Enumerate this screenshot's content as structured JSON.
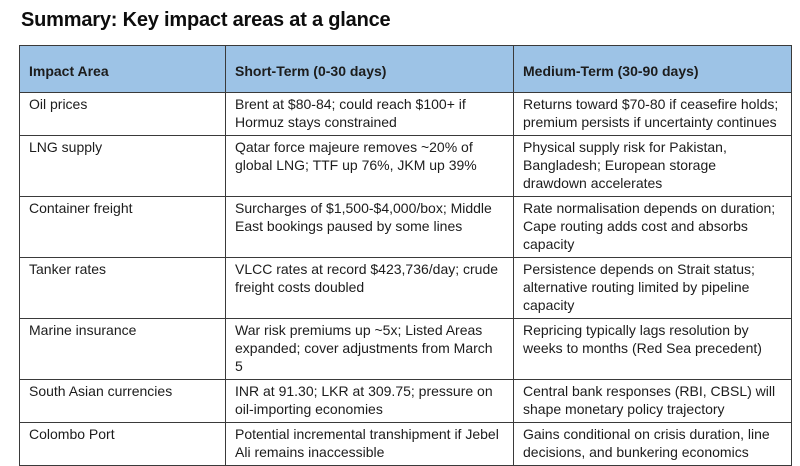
{
  "page": {
    "title": "Summary: Key impact areas at a glance"
  },
  "colors": {
    "header_bg": "#9DC3E6",
    "table_border": "#3A3A3A",
    "text": "#1C1C1C"
  },
  "table": {
    "headers": [
      "Impact Area",
      "Short-Term (0-30 days)",
      "Medium-Term (30-90 days)"
    ],
    "rows": [
      {
        "area": "Oil prices",
        "short": "Brent at $80-84; could reach $100+ if Hormuz stays constrained",
        "medium": "Returns toward $70-80 if ceasefire holds; premium persists if uncertainty continues"
      },
      {
        "area": "LNG supply",
        "short": "Qatar force majeure removes ~20% of global LNG; TTF up 76%, JKM up 39%",
        "medium": "Physical supply risk for Pakistan, Bangladesh; European storage drawdown accelerates"
      },
      {
        "area": "Container freight",
        "short": "Surcharges of $1,500-$4,000/box; Middle East bookings paused by some lines",
        "medium": "Rate normalisation depends on duration; Cape routing adds cost and absorbs capacity"
      },
      {
        "area": "Tanker rates",
        "short": "VLCC rates at record $423,736/day; crude freight costs doubled",
        "medium": "Persistence depends on Strait status; alternative routing limited by pipeline capacity"
      },
      {
        "area": "Marine insurance",
        "short": "War risk premiums up ~5x; Listed Areas expanded; cover adjustments from March 5",
        "medium": "Repricing typically lags resolution by weeks to months (Red Sea precedent)"
      },
      {
        "area": "South Asian currencies",
        "short": "INR at 91.30; LKR at 309.75; pressure on oil-importing economies",
        "medium": "Central bank responses (RBI, CBSL) will shape monetary policy trajectory"
      },
      {
        "area": "Colombo Port",
        "short": "Potential incremental transhipment if Jebel Ali remains inaccessible",
        "medium": "Gains conditional on crisis duration, line decisions, and bunkering economics"
      }
    ]
  }
}
